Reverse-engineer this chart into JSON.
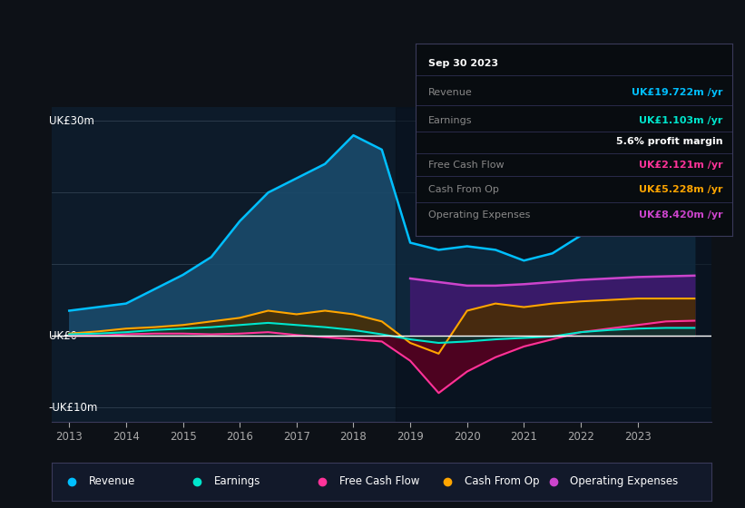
{
  "bg_color": "#0d1117",
  "plot_bg_color": "#0d1b2a",
  "grid_color": "#2a3a4a",
  "zero_line_color": "#ffffff",
  "ylabel_top": "UK£30m",
  "ylabel_zero": "UK£0",
  "ylabel_bottom": "-UK£10m",
  "ylim": [
    -12,
    32
  ],
  "years": [
    2013.0,
    2013.5,
    2014.0,
    2014.5,
    2015.0,
    2015.5,
    2016.0,
    2016.5,
    2017.0,
    2017.5,
    2018.0,
    2018.5,
    2019.0,
    2019.5,
    2020.0,
    2020.5,
    2021.0,
    2021.5,
    2022.0,
    2022.5,
    2023.0,
    2023.5,
    2024.0
  ],
  "revenue": [
    3.5,
    4.0,
    4.5,
    6.5,
    8.5,
    11.0,
    16.0,
    20.0,
    22.0,
    24.0,
    28.0,
    26.0,
    13.0,
    12.0,
    12.5,
    12.0,
    10.5,
    11.5,
    14.0,
    16.0,
    18.5,
    19.5,
    20.0
  ],
  "earnings": [
    0.2,
    0.3,
    0.5,
    0.8,
    1.0,
    1.2,
    1.5,
    1.8,
    1.5,
    1.2,
    0.8,
    0.2,
    -0.5,
    -1.0,
    -0.8,
    -0.5,
    -0.3,
    -0.1,
    0.5,
    0.8,
    1.0,
    1.1,
    1.1
  ],
  "free_cash_flow": [
    0.0,
    0.0,
    0.2,
    0.3,
    0.3,
    0.2,
    0.3,
    0.5,
    0.1,
    -0.2,
    -0.5,
    -0.8,
    -3.5,
    -8.0,
    -5.0,
    -3.0,
    -1.5,
    -0.5,
    0.5,
    1.0,
    1.5,
    2.0,
    2.1
  ],
  "cash_from_op": [
    0.3,
    0.6,
    1.0,
    1.2,
    1.5,
    2.0,
    2.5,
    3.5,
    3.0,
    3.5,
    3.0,
    2.0,
    -1.0,
    -2.5,
    3.5,
    4.5,
    4.0,
    4.5,
    4.8,
    5.0,
    5.2,
    5.2,
    5.2
  ],
  "op_expenses_years": [
    2019.0,
    2019.5,
    2020.0,
    2020.5,
    2021.0,
    2021.5,
    2022.0,
    2022.5,
    2023.0,
    2023.5,
    2024.0
  ],
  "op_expenses": [
    8.0,
    7.5,
    7.0,
    7.0,
    7.2,
    7.5,
    7.8,
    8.0,
    8.2,
    8.3,
    8.4
  ],
  "revenue_color": "#00bfff",
  "revenue_fill": "#1a4a6b",
  "earnings_color": "#00e5cc",
  "earnings_fill": "#003d35",
  "fcf_color": "#ff3399",
  "fcf_fill": "#5a0020",
  "cashop_color": "#ffa500",
  "cashop_fill": "#4a2d00",
  "opex_color": "#cc44cc",
  "opex_fill": "#3d1a6e",
  "legend_bg": "#12192a",
  "legend_border": "#3a3a5a",
  "tooltip_bg": "#080c10",
  "tooltip_border": "#3a3a5a",
  "tooltip_date": "Sep 30 2023",
  "tooltip_revenue_label": "Revenue",
  "tooltip_revenue_val": "UK£19.722m /yr",
  "tooltip_revenue_color": "#00bfff",
  "tooltip_earnings_label": "Earnings",
  "tooltip_earnings_val": "UK£1.103m /yr",
  "tooltip_earnings_color": "#00e5cc",
  "tooltip_margin": "5.6% profit margin",
  "tooltip_fcf_label": "Free Cash Flow",
  "tooltip_fcf_val": "UK£2.121m /yr",
  "tooltip_fcf_color": "#ff3399",
  "tooltip_cashop_label": "Cash From Op",
  "tooltip_cashop_val": "UK£5.228m /yr",
  "tooltip_cashop_color": "#ffa500",
  "tooltip_opex_label": "Operating Expenses",
  "tooltip_opex_val": "UK£8.420m /yr",
  "tooltip_opex_color": "#cc44cc",
  "legend_items": [
    "Revenue",
    "Earnings",
    "Free Cash Flow",
    "Cash From Op",
    "Operating Expenses"
  ],
  "legend_colors": [
    "#00bfff",
    "#00e5cc",
    "#ff3399",
    "#ffa500",
    "#cc44cc"
  ],
  "xtick_years": [
    2013,
    2014,
    2015,
    2016,
    2017,
    2018,
    2019,
    2020,
    2021,
    2022,
    2023
  ]
}
